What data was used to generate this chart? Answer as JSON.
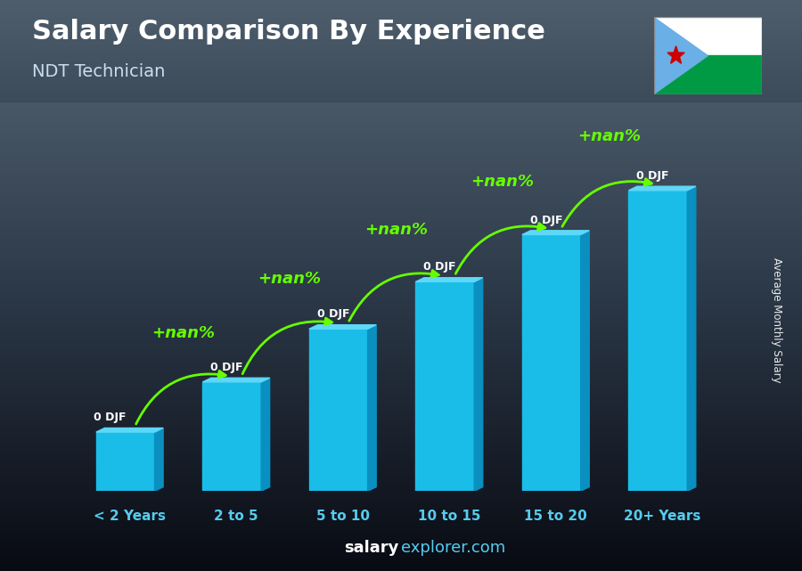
{
  "title": "Salary Comparison By Experience",
  "subtitle": "NDT Technician",
  "categories": [
    "< 2 Years",
    "2 to 5",
    "5 to 10",
    "10 to 15",
    "15 to 20",
    "20+ Years"
  ],
  "heights": [
    1.0,
    1.85,
    2.75,
    3.55,
    4.35,
    5.1
  ],
  "bar_color_face": "#1ABDE8",
  "bar_color_top": "#5DD8F8",
  "bar_color_side": "#0A90C0",
  "bar_label": "0 DJF",
  "increase_label": "+nan%",
  "ylabel": "Average Monthly Salary",
  "footer_salary": "salary",
  "footer_explorer": "explorer.com",
  "title_color": "#ffffff",
  "subtitle_color": "#ccddee",
  "xlabel_color": "#55ccee",
  "arrow_color": "#66ff00",
  "bar_label_color": "#ffffff",
  "increase_color": "#66ff00",
  "flag_white": "#ffffff",
  "flag_green": "#009A44",
  "flag_blue": "#6AAFE6",
  "flag_star": "#cc0000"
}
